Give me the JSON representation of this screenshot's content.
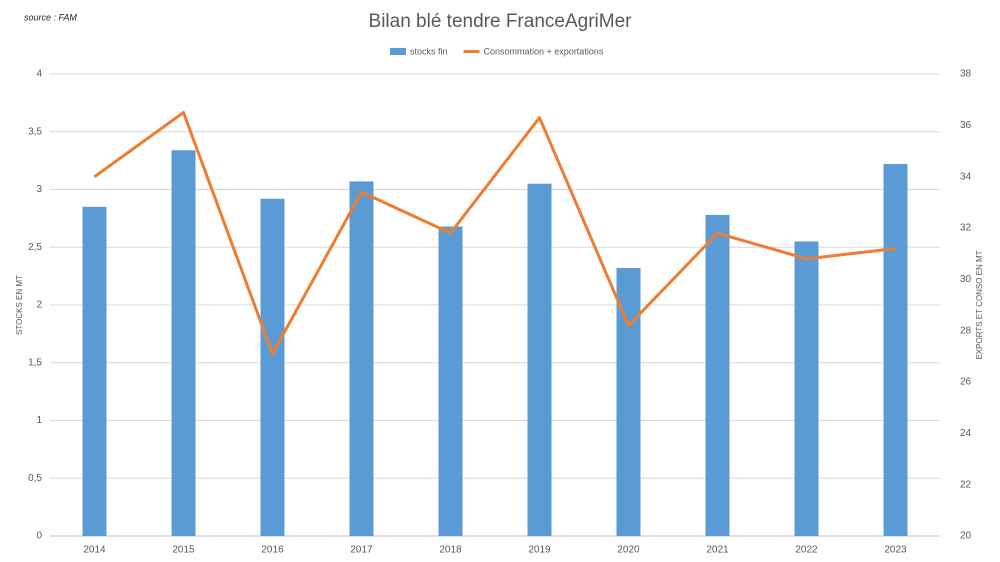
{
  "chart_data": {
    "type": "bar",
    "title": "Bilan blé tendre FranceAgriMer",
    "source": "source : FAM",
    "y_label": "STOCKS EN MT",
    "y2_label": "EXPORTS ET CONSO EN MT",
    "categories": [
      "2014",
      "2015",
      "2016",
      "2017",
      "2018",
      "2019",
      "2020",
      "2021",
      "2022",
      "2023"
    ],
    "series": [
      {
        "name": "stocks fin",
        "type": "bar",
        "color": "#5b9bd5",
        "values": [
          2.85,
          3.34,
          2.92,
          3.07,
          2.68,
          3.05,
          2.32,
          2.78,
          2.55,
          3.22
        ]
      },
      {
        "name": "Consommation + exportations",
        "type": "line",
        "axis": "y2",
        "color": "#ed7d31",
        "values": [
          34.0,
          36.5,
          27.1,
          33.4,
          31.8,
          36.3,
          28.2,
          31.8,
          30.8,
          31.2
        ]
      }
    ],
    "ylim": [
      0,
      4
    ],
    "yticks": [
      0,
      {
        "value": 0.5,
        "label": "0,5"
      },
      1,
      {
        "value": 1.5,
        "label": "1,5"
      },
      2,
      {
        "value": 2.5,
        "label": "2,5"
      },
      3,
      {
        "value": 3.5,
        "label": "3,5"
      },
      4
    ],
    "y2lim": [
      20,
      38
    ],
    "y2ticks": [
      20,
      22,
      24,
      26,
      28,
      30,
      32,
      34,
      36,
      38
    ],
    "grid": true,
    "legend": "top"
  }
}
